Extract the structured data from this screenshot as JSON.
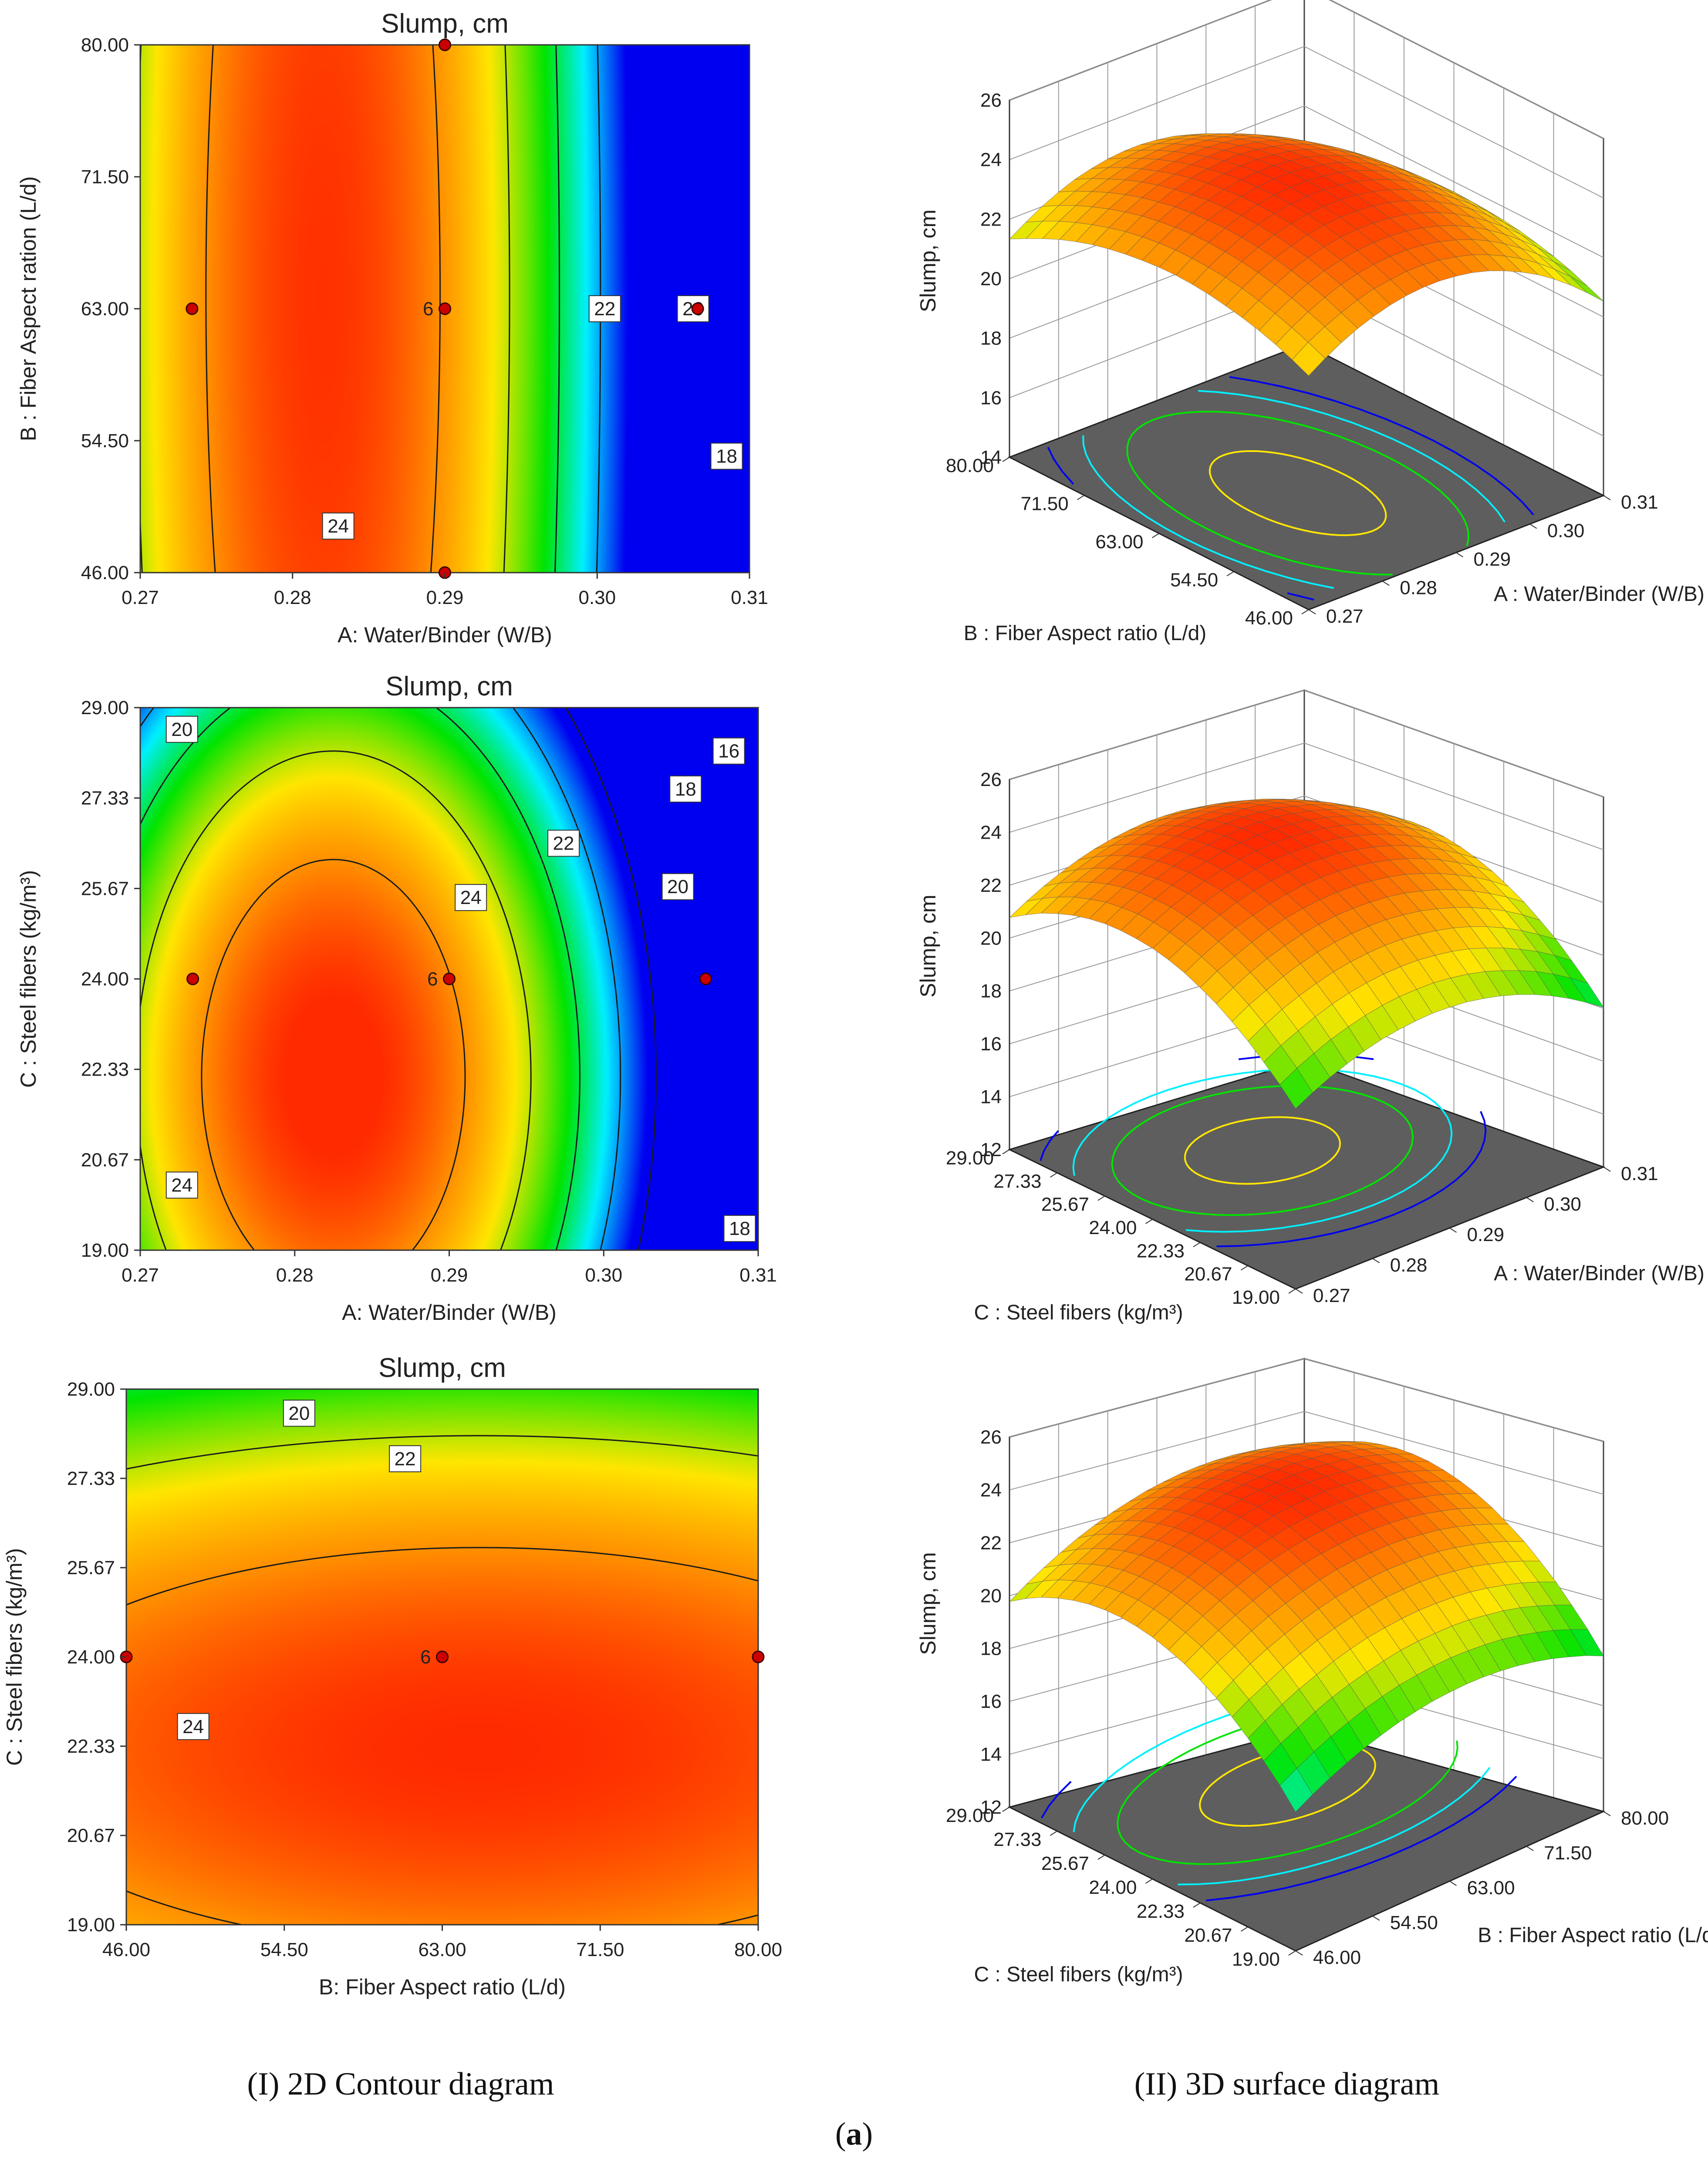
{
  "figure": {
    "caption_left": "(I) 2D Contour diagram",
    "caption_right": "(II) 3D surface diagram",
    "panel_label": "(a)",
    "panel_label_letter": "a"
  },
  "colors": {
    "high": "#ff2a00",
    "orange": "#ff8c00",
    "yellow": "#ffe600",
    "green": "#00e400",
    "cyan": "#00f0ff",
    "blue": "#0000f0",
    "point": "#cc0000",
    "floor": "#5e5e5e"
  },
  "chart_data": [
    {
      "type": "contour",
      "title": "Slump, cm",
      "xlabel": "A: Water/Binder (W/B)",
      "ylabel": "B : Fiber Aspect ration (L/d)",
      "xlim": [
        0.27,
        0.31
      ],
      "ylim": [
        46.0,
        80.0
      ],
      "x_ticks": [
        "0.27",
        "0.28",
        "0.29",
        "0.30",
        "0.31"
      ],
      "y_ticks": [
        "46.00",
        "54.50",
        "63.00",
        "71.50",
        "80.00"
      ],
      "model": {
        "z0": 25.3,
        "x0": 0.282,
        "y0": 64.0,
        "kx": 22000,
        "ky": 0.00061,
        "kxy": 0
      },
      "contour_levels": [
        18,
        20,
        22,
        24
      ],
      "contour_labels": [
        {
          "text": "24",
          "x": 0.283,
          "y": 49.0
        },
        {
          "text": "22",
          "x": 0.3005,
          "y": 63.0
        },
        {
          "text": "20",
          "x": 0.3063,
          "y": 63.0
        },
        {
          "text": "18",
          "x": 0.3085,
          "y": 53.5
        }
      ],
      "design_points": [
        {
          "x": 0.2734,
          "y": 63.0
        },
        {
          "x": 0.29,
          "y": 63.0,
          "label": "6"
        },
        {
          "x": 0.3066,
          "y": 63.0
        },
        {
          "x": 0.29,
          "y": 80.0
        },
        {
          "x": 0.29,
          "y": 46.0
        }
      ]
    },
    {
      "type": "contour",
      "title": "Slump, cm",
      "xlabel": "A: Water/Binder (W/B)",
      "ylabel": "C : Steel fibers (kg/m³)",
      "xlim": [
        0.27,
        0.31
      ],
      "ylim": [
        19.0,
        29.0
      ],
      "x_ticks": [
        "0.27",
        "0.28",
        "0.29",
        "0.30",
        "0.31"
      ],
      "y_ticks": [
        "19.00",
        "20.67",
        "22.33",
        "24.00",
        "25.67",
        "27.33",
        "29.00"
      ],
      "model": {
        "z0": 25.6,
        "x0": 0.2825,
        "y0": 22.2,
        "kx": 22000,
        "ky": 0.1,
        "kxy": 0
      },
      "contour_levels": [
        16,
        18,
        20,
        22,
        24
      ],
      "contour_labels": [
        {
          "text": "20",
          "x": 0.2727,
          "y": 28.6
        },
        {
          "text": "16",
          "x": 0.3081,
          "y": 28.2
        },
        {
          "text": "18",
          "x": 0.3053,
          "y": 27.5
        },
        {
          "text": "22",
          "x": 0.2974,
          "y": 26.5
        },
        {
          "text": "24",
          "x": 0.2914,
          "y": 25.5
        },
        {
          "text": "20",
          "x": 0.3048,
          "y": 25.7
        },
        {
          "text": "24",
          "x": 0.2727,
          "y": 20.2
        },
        {
          "text": "18",
          "x": 0.3088,
          "y": 19.4
        }
      ],
      "design_points": [
        {
          "x": 0.2734,
          "y": 24.0
        },
        {
          "x": 0.29,
          "y": 24.0,
          "label": "6"
        },
        {
          "x": 0.3066,
          "y": 24.0
        }
      ]
    },
    {
      "type": "contour",
      "title": "Slump, cm",
      "xlabel": "B: Fiber Aspect ratio (L/d)",
      "ylabel": "C : Steel fibers (kg/m³)",
      "xlim": [
        46.0,
        80.0
      ],
      "ylim": [
        19.0,
        29.0
      ],
      "x_ticks": [
        "46.00",
        "54.50",
        "63.00",
        "71.50",
        "80.00"
      ],
      "y_ticks": [
        "19.00",
        "20.67",
        "22.33",
        "24.00",
        "25.67",
        "27.33",
        "29.00"
      ],
      "model": {
        "z0": 25.4,
        "x0": 65.0,
        "y0": 22.3,
        "kx": 0.0019,
        "ky": 0.1,
        "kxy": 0
      },
      "contour_levels": [
        20,
        22,
        24
      ],
      "contour_labels": [
        {
          "text": "20",
          "x": 55.3,
          "y": 28.55
        },
        {
          "text": "22",
          "x": 61.0,
          "y": 27.7
        },
        {
          "text": "24",
          "x": 49.6,
          "y": 22.7
        }
      ],
      "design_points": [
        {
          "x": 46.0,
          "y": 24.0
        },
        {
          "x": 63.0,
          "y": 24.0,
          "label": "6"
        },
        {
          "x": 80.0,
          "y": 24.0
        }
      ]
    },
    {
      "type": "surface3d",
      "zlabel": "Slump, cm",
      "xlabel": "A : Water/Binder (W/B)",
      "ylabel": "B : Fiber Aspect ratio (L/d)",
      "x_ticks": [
        "0.27",
        "0.28",
        "0.29",
        "0.30",
        "0.31"
      ],
      "y_ticks": [
        "46.00",
        "54.50",
        "63.00",
        "71.50",
        "80.00"
      ],
      "z_ticks": [
        "14",
        "16",
        "18",
        "20",
        "22",
        "24",
        "26"
      ],
      "zlim": [
        14,
        26
      ]
    },
    {
      "type": "surface3d",
      "zlabel": "Slump, cm",
      "xlabel": "A : Water/Binder (W/B)",
      "ylabel": "C : Steel fibers (kg/m³)",
      "x_ticks": [
        "0.27",
        "0.28",
        "0.29",
        "0.30",
        "0.31"
      ],
      "y_ticks": [
        "19.00",
        "20.67",
        "22.33",
        "24.00",
        "25.67",
        "27.33",
        "29.00"
      ],
      "z_ticks": [
        "12",
        "14",
        "16",
        "18",
        "20",
        "22",
        "24",
        "26"
      ],
      "zlim": [
        12,
        26
      ]
    },
    {
      "type": "surface3d",
      "zlabel": "Slump, cm",
      "xlabel": "B : Fiber Aspect ratio (L/d)",
      "ylabel": "C : Steel fibers (kg/m³)",
      "x_ticks": [
        "46.00",
        "54.50",
        "63.00",
        "71.50",
        "80.00"
      ],
      "y_ticks": [
        "19.00",
        "20.67",
        "22.33",
        "24.00",
        "25.67",
        "27.33",
        "29.00"
      ],
      "z_ticks": [
        "12",
        "14",
        "16",
        "18",
        "20",
        "22",
        "24",
        "26"
      ],
      "zlim": [
        12,
        26
      ]
    }
  ]
}
